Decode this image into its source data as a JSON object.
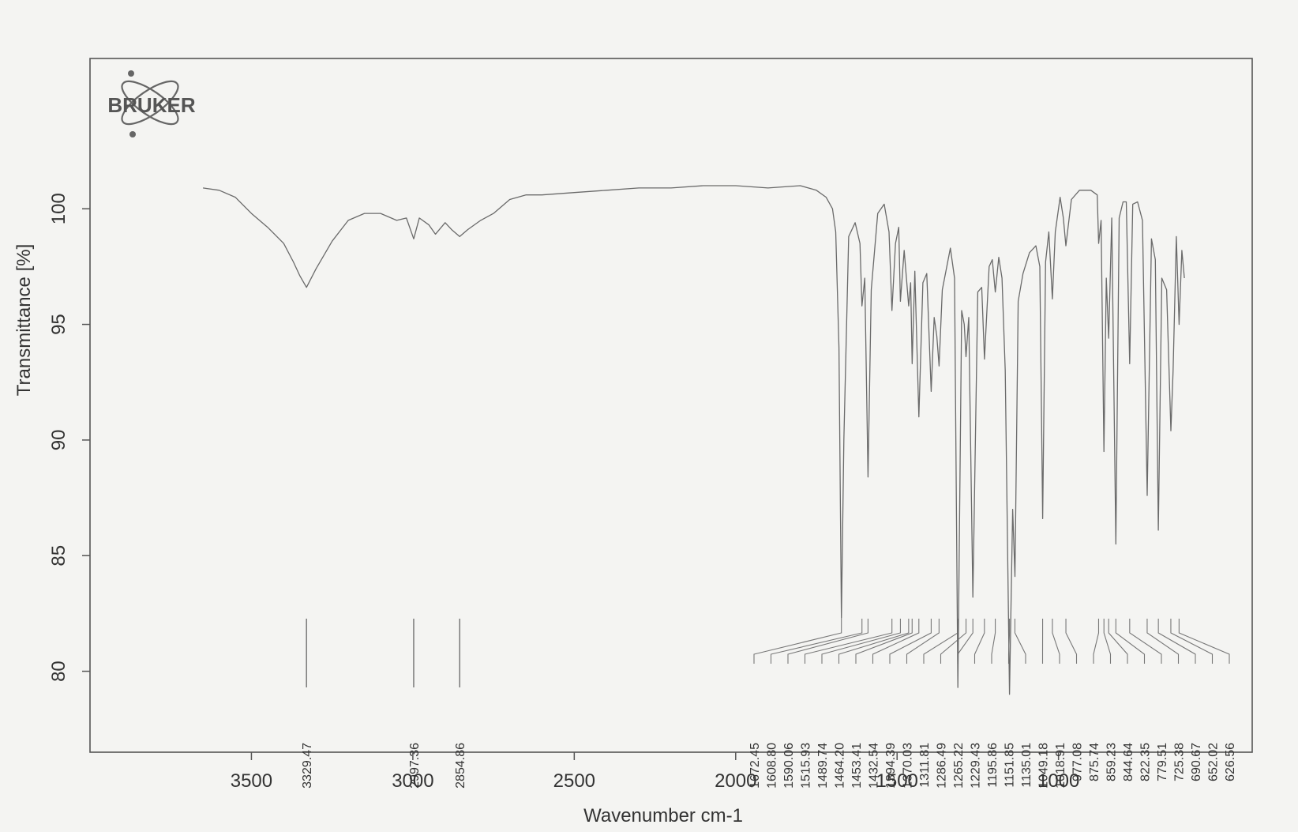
{
  "chart_data": {
    "type": "line",
    "xlabel": "Wavenumber cm-1",
    "ylabel": "Transmittance [%]",
    "xlim": [
      4000,
      400
    ],
    "ylim": [
      76.5,
      106.5
    ],
    "x_ticks": [
      "3500",
      "3000",
      "2500",
      "2000",
      "1500",
      "1000"
    ],
    "y_ticks": [
      "100",
      "95",
      "90",
      "85",
      "80"
    ],
    "grid": false,
    "logo_text": "BRUKER",
    "peaks": [
      {
        "x": 3329.47,
        "label": "3329.47",
        "y": 96.6
      },
      {
        "x": 2997.36,
        "label": "2997.36",
        "y": 98.7
      },
      {
        "x": 2854.86,
        "label": "2854.86",
        "y": 98.8
      },
      {
        "x": 1672.45,
        "label": "1672.45",
        "y": 82.3
      },
      {
        "x": 1608.8,
        "label": "1608.80",
        "y": 95.8
      },
      {
        "x": 1590.06,
        "label": "1590.06",
        "y": 88.4
      },
      {
        "x": 1515.93,
        "label": "1515.93",
        "y": 95.6
      },
      {
        "x": 1489.74,
        "label": "1489.74",
        "y": 96.0
      },
      {
        "x": 1464.2,
        "label": "1464.20",
        "y": 95.8
      },
      {
        "x": 1453.41,
        "label": "1453.41",
        "y": 93.3
      },
      {
        "x": 1432.54,
        "label": "1432.54",
        "y": 91.0
      },
      {
        "x": 1394.39,
        "label": "1394.39",
        "y": 92.1
      },
      {
        "x": 1370.03,
        "label": "1370.03",
        "y": 93.2
      },
      {
        "x": 1311.81,
        "label": "1311.81",
        "y": 79.3
      },
      {
        "x": 1286.49,
        "label": "1286.49",
        "y": 93.6
      },
      {
        "x": 1265.22,
        "label": "1265.22",
        "y": 83.2
      },
      {
        "x": 1229.43,
        "label": "1229.43",
        "y": 93.5
      },
      {
        "x": 1195.86,
        "label": "1195.86",
        "y": 96.4
      },
      {
        "x": 1151.85,
        "label": "1151.85",
        "y": 79.0
      },
      {
        "x": 1135.01,
        "label": "1135.01",
        "y": 84.1
      },
      {
        "x": 1049.18,
        "label": "1049.18",
        "y": 86.6
      },
      {
        "x": 1018.91,
        "label": "1018.91",
        "y": 96.1
      },
      {
        "x": 977.08,
        "label": "977.08",
        "y": 98.4
      },
      {
        "x": 875.74,
        "label": "875.74",
        "y": 98.5
      },
      {
        "x": 859.23,
        "label": "859.23",
        "y": 89.5
      },
      {
        "x": 844.64,
        "label": "844.64",
        "y": 94.4
      },
      {
        "x": 822.35,
        "label": "822.35",
        "y": 85.5
      },
      {
        "x": 779.51,
        "label": "779.51",
        "y": 93.3
      },
      {
        "x": 725.38,
        "label": "725.38",
        "y": 87.6
      },
      {
        "x": 690.67,
        "label": "690.67",
        "y": 86.1
      },
      {
        "x": 652.02,
        "label": "652.02",
        "y": 90.4
      },
      {
        "x": 626.56,
        "label": "626.56",
        "y": 95.0
      }
    ],
    "series": [
      {
        "x": [
          3650,
          3600,
          3550,
          3500,
          3450,
          3400,
          3370,
          3350,
          3329.47,
          3300,
          3250,
          3200,
          3150,
          3100,
          3050,
          3020,
          2997.36,
          2980,
          2950,
          2930,
          2900,
          2880,
          2854.86,
          2830,
          2790,
          2750,
          2700,
          2650,
          2600,
          2500,
          2400,
          2300,
          2200,
          2100,
          2000,
          1900,
          1800,
          1750,
          1720,
          1700,
          1690,
          1680,
          1672.45,
          1665,
          1650,
          1630,
          1615,
          1608.8,
          1600,
          1590.06,
          1580,
          1560,
          1540,
          1525,
          1515.93,
          1505,
          1495,
          1489.74,
          1478,
          1464.2,
          1458,
          1453.41,
          1445,
          1432.54,
          1420,
          1408,
          1394.39,
          1385,
          1377,
          1370.03,
          1360,
          1335,
          1322,
          1311.81,
          1300,
          1292,
          1286.49,
          1278,
          1265.22,
          1250,
          1238,
          1229.43,
          1215,
          1205,
          1195.86,
          1185,
          1175,
          1165,
          1151.85,
          1142,
          1135.01,
          1125,
          1110,
          1090,
          1070,
          1058,
          1049.18,
          1040,
          1030,
          1018.91,
          1010,
          995,
          985,
          977.08,
          960,
          935,
          900,
          880,
          875.74,
          868,
          859.23,
          852,
          844.64,
          835,
          822.35,
          812,
          800,
          790,
          779.51,
          770,
          755,
          740,
          725.38,
          712,
          700,
          690.67,
          680,
          665,
          652.02,
          645,
          635,
          626.56,
          618,
          610
        ],
        "y": [
          100.9,
          100.8,
          100.5,
          99.8,
          99.2,
          98.5,
          97.7,
          97.1,
          96.6,
          97.4,
          98.6,
          99.5,
          99.8,
          99.8,
          99.5,
          99.6,
          98.7,
          99.6,
          99.3,
          98.9,
          99.4,
          99.1,
          98.8,
          99.1,
          99.5,
          99.8,
          100.4,
          100.6,
          100.6,
          100.7,
          100.8,
          100.9,
          100.9,
          101.0,
          101.0,
          100.9,
          101.0,
          100.8,
          100.5,
          100.0,
          99.0,
          94.0,
          82.3,
          90.0,
          98.8,
          99.4,
          98.5,
          95.8,
          97.0,
          88.4,
          96.5,
          99.8,
          100.2,
          99.0,
          95.6,
          98.5,
          99.2,
          96.0,
          98.2,
          95.8,
          96.8,
          93.3,
          97.3,
          91.0,
          96.8,
          97.2,
          92.1,
          95.3,
          94.5,
          93.2,
          96.5,
          98.3,
          97.0,
          79.3,
          95.6,
          95.0,
          93.6,
          95.3,
          83.2,
          96.4,
          96.6,
          93.5,
          97.5,
          97.8,
          96.4,
          97.9,
          97.0,
          93.0,
          79.0,
          87.0,
          84.1,
          96.0,
          97.2,
          98.1,
          98.4,
          97.5,
          86.6,
          97.7,
          99.0,
          96.1,
          99.0,
          100.5,
          99.6,
          98.4,
          100.4,
          100.8,
          100.8,
          100.6,
          98.5,
          99.5,
          89.5,
          97.0,
          94.4,
          99.6,
          85.5,
          99.6,
          100.3,
          100.3,
          93.3,
          100.2,
          100.3,
          99.5,
          87.6,
          98.7,
          97.8,
          86.1,
          97.0,
          96.5,
          90.4,
          93.0,
          98.8,
          95.0,
          98.2,
          97.0
        ]
      }
    ]
  }
}
